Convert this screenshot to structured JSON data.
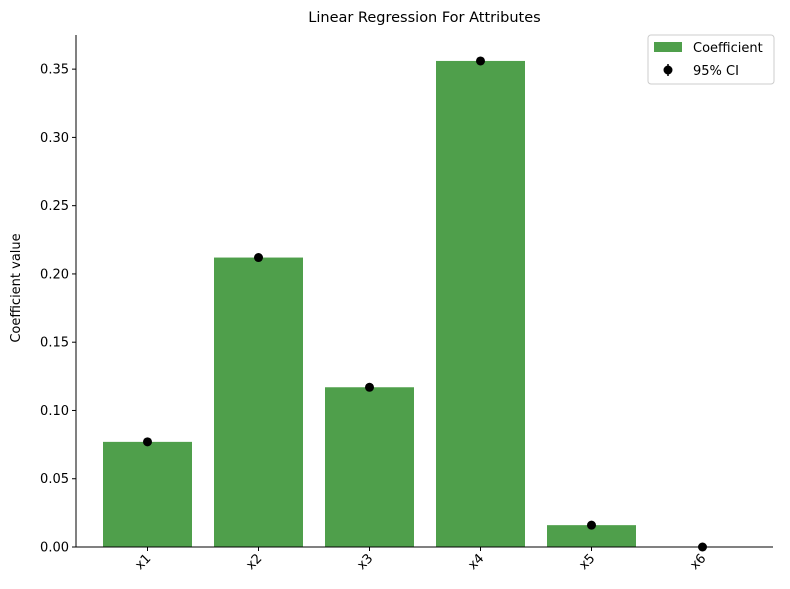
{
  "colors": {
    "bar": "#4f9f4b",
    "point": "#000000",
    "axis": "#000000",
    "legend_border": "#cccccc"
  },
  "chart_data": {
    "type": "bar",
    "title": "Linear Regression For Attributes",
    "xlabel": "",
    "ylabel": "Coefficient value",
    "categories": [
      "x1",
      "x2",
      "x3",
      "x4",
      "x5",
      "x6"
    ],
    "series": [
      {
        "name": "Coefficient",
        "values": [
          0.077,
          0.212,
          0.117,
          0.356,
          0.016,
          0.0
        ]
      }
    ],
    "ci_points": {
      "name": "95% CI",
      "values": [
        0.077,
        0.212,
        0.117,
        0.356,
        0.016,
        0.0
      ]
    },
    "ylim": [
      0,
      0.375
    ],
    "yticks": [
      "0.00",
      "0.05",
      "0.10",
      "0.15",
      "0.20",
      "0.25",
      "0.30",
      "0.35"
    ],
    "grid": false,
    "legend_placement": "top-right"
  }
}
